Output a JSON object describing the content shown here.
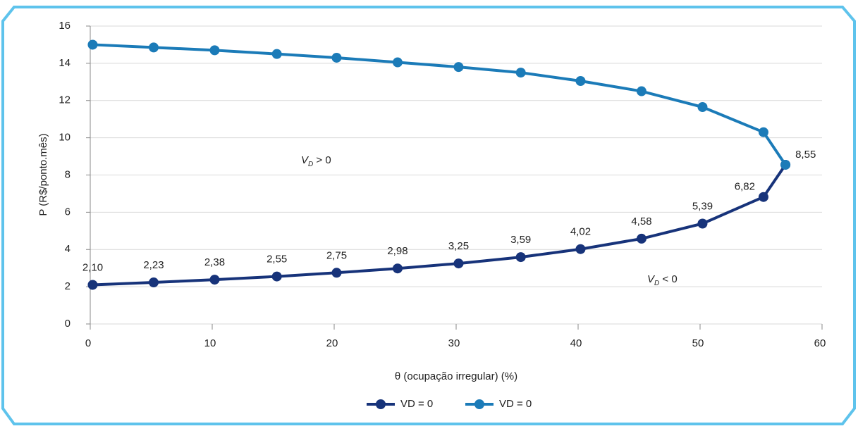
{
  "chart_data": {
    "type": "line",
    "xlabel": "θ (ocupação irregular) (%)",
    "ylabel": "P (R$/ponto.mês)",
    "xlim": [
      0,
      60
    ],
    "xticks": [
      0,
      10,
      20,
      30,
      40,
      50,
      60
    ],
    "ylim": [
      0,
      16
    ],
    "yticks": [
      0,
      2,
      4,
      6,
      8,
      10,
      12,
      14,
      16
    ],
    "grid": true,
    "legend": "bottom",
    "annotations": [
      {
        "symbol": "V",
        "subscript": "D",
        "text": " > 0"
      },
      {
        "symbol": "V",
        "subscript": "D",
        "text": " < 0"
      }
    ],
    "series": [
      {
        "name": "VD = 0",
        "color": "#17337a",
        "x": [
          0.2,
          5.2,
          10.2,
          15.3,
          20.2,
          25.2,
          30.2,
          35.3,
          40.2,
          45.2,
          50.2,
          55.2,
          57.0
        ],
        "values": [
          2.1,
          2.23,
          2.38,
          2.55,
          2.75,
          2.98,
          3.25,
          3.59,
          4.02,
          4.58,
          5.39,
          6.82,
          8.55
        ],
        "value_labels": [
          "2,10",
          "2,23",
          "2,38",
          "2,55",
          "2,75",
          "2,98",
          "3,25",
          "3,59",
          "4,02",
          "4,58",
          "5,39",
          "6,82",
          "8,55"
        ]
      },
      {
        "name": "VD = 0",
        "color": "#1b7bb8",
        "x": [
          0.2,
          5.2,
          10.2,
          15.3,
          20.2,
          25.2,
          30.2,
          35.3,
          40.2,
          45.2,
          50.2,
          55.2,
          57.0
        ],
        "values": [
          15.0,
          14.85,
          14.7,
          14.5,
          14.3,
          14.05,
          13.8,
          13.5,
          13.05,
          12.5,
          11.65,
          10.3,
          8.55
        ]
      }
    ]
  }
}
